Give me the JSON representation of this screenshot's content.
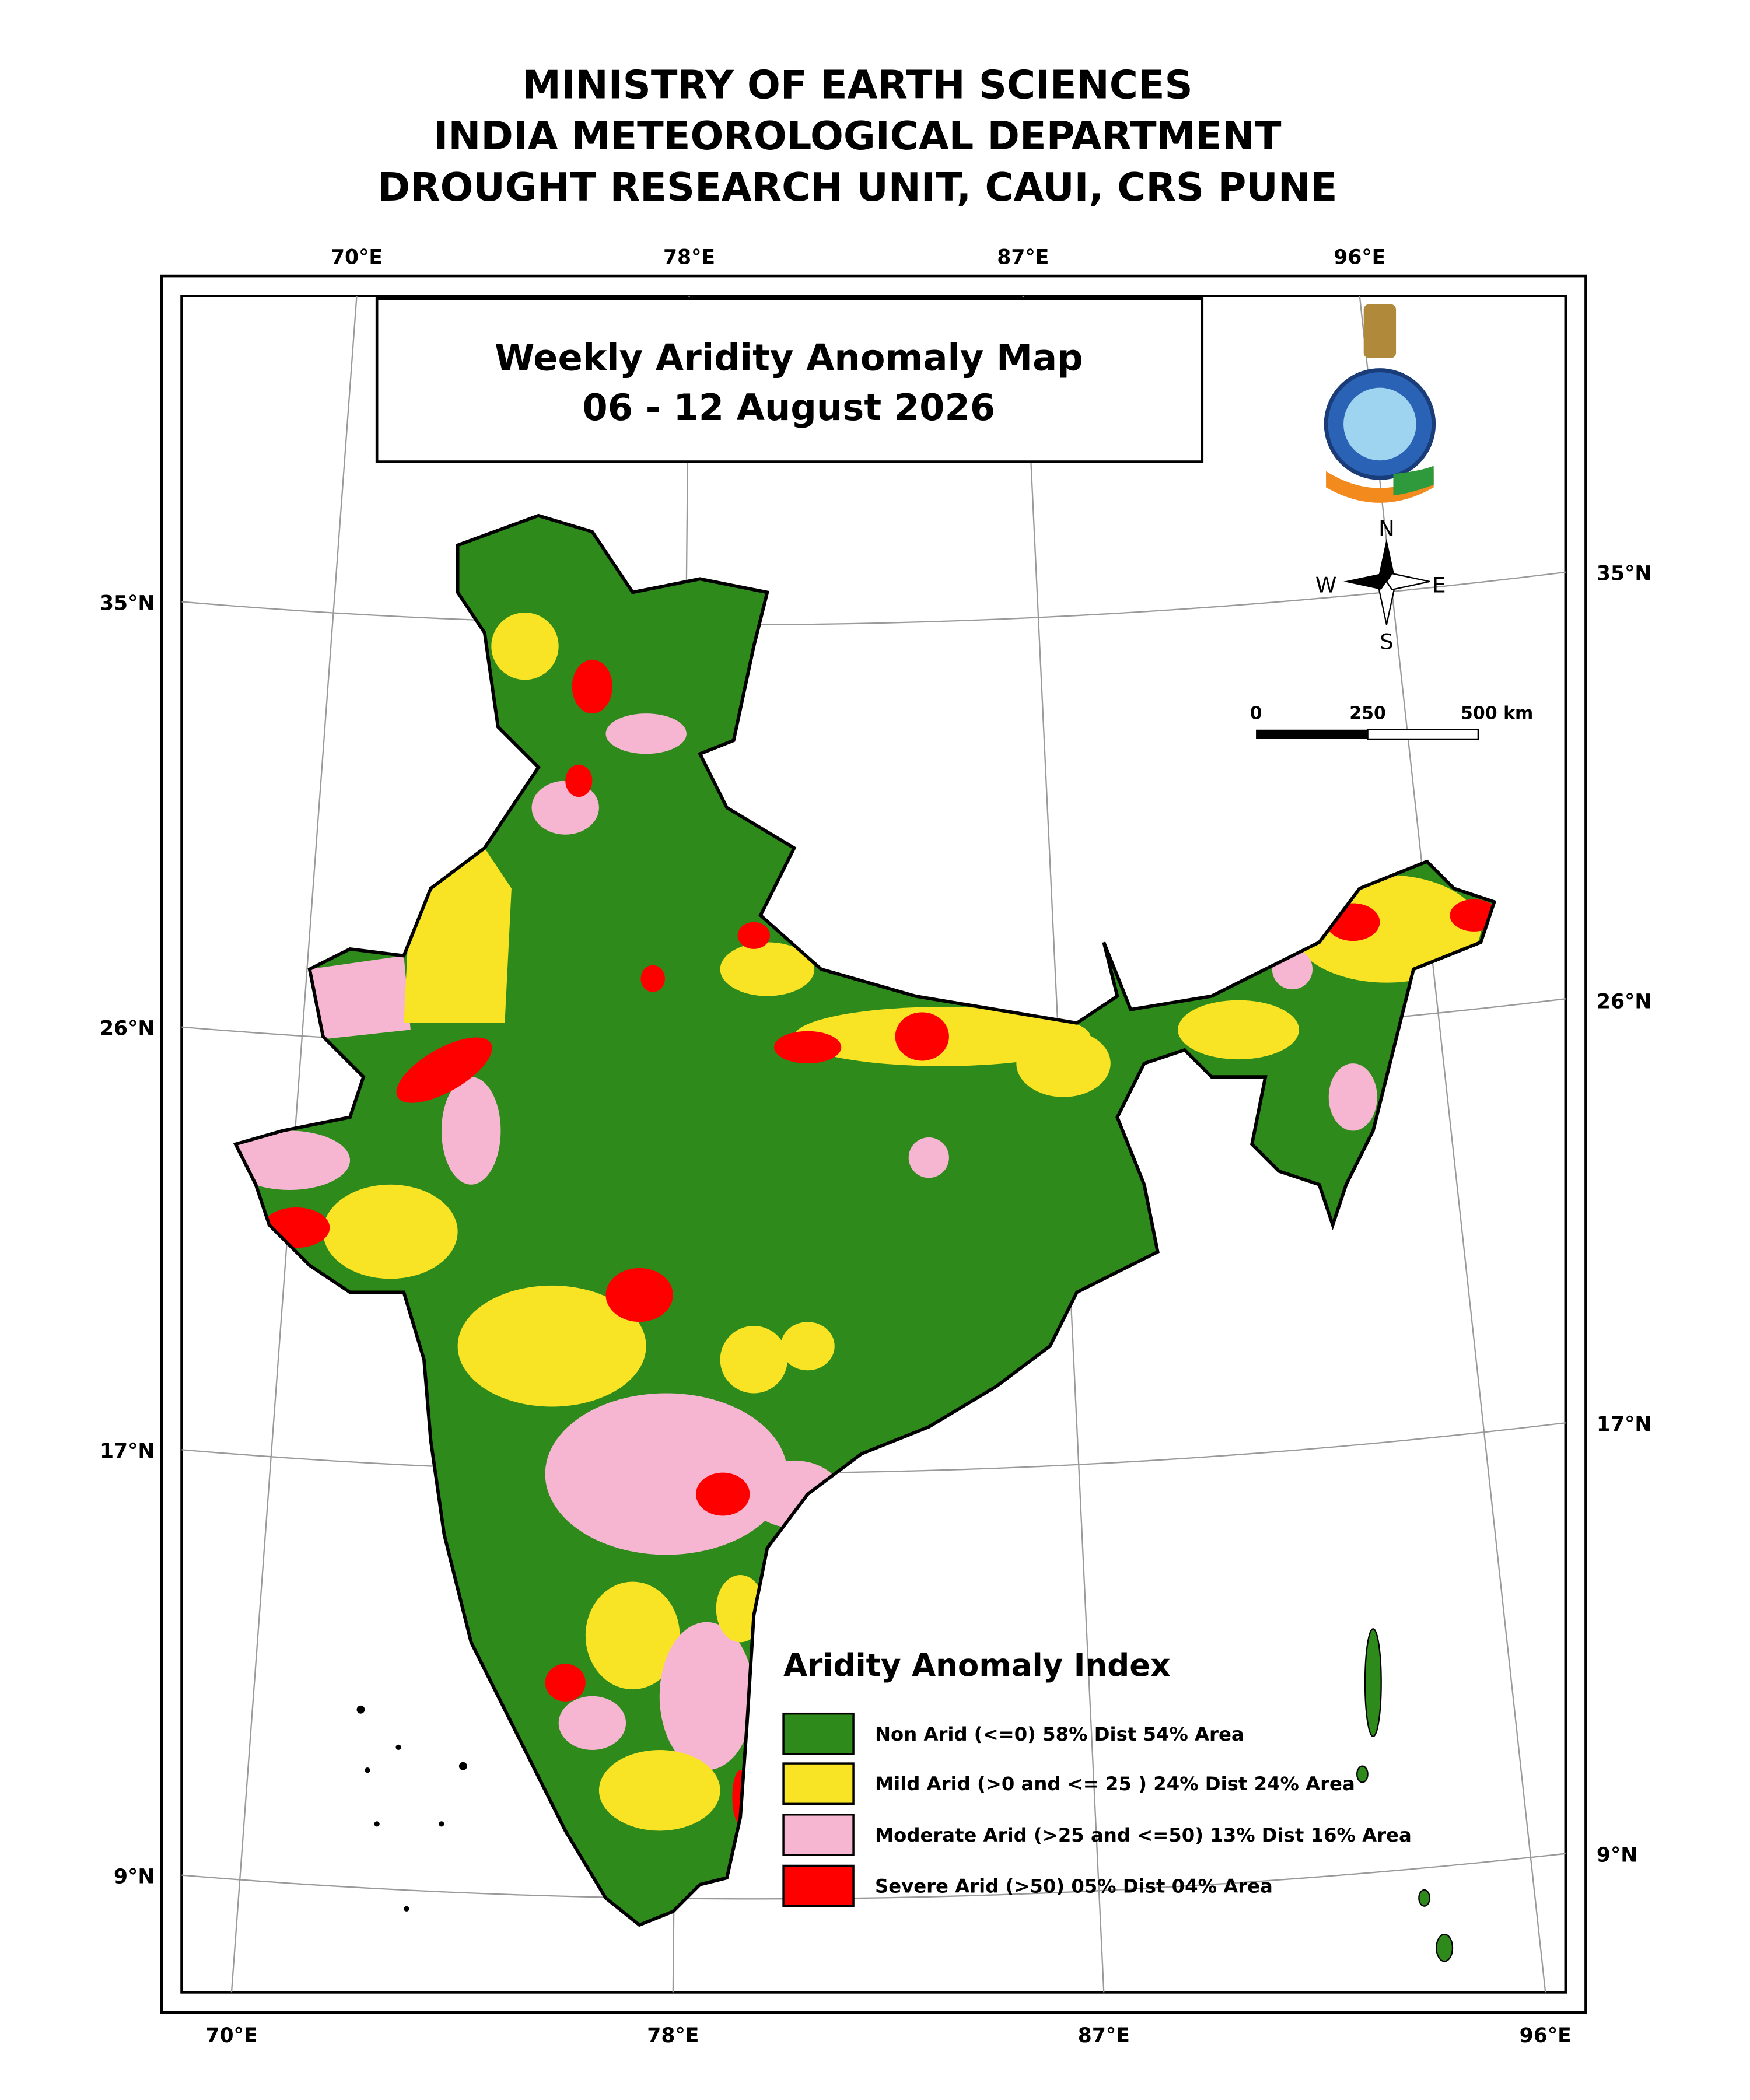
{
  "header": {
    "lines": [
      "MINISTRY OF EARTH SCIENCES",
      "INDIA METEOROLOGICAL DEPARTMENT",
      "DROUGHT RESEARCH UNIT, CAUI, CRS PUNE"
    ]
  },
  "map": {
    "title": "Weekly Aridity Anomaly Map",
    "period": "06 - 12  August 2026",
    "top_labels": [
      "70°E",
      "78°E",
      "87°E",
      "96°E"
    ],
    "bottom_labels": [
      "70°E",
      "78°E",
      "87°E",
      "96°E"
    ],
    "left_labels": [
      "35°N",
      "26°N",
      "17°N",
      "9°N"
    ],
    "right_labels": [
      "35°N",
      "26°N",
      "17°N",
      "9°N"
    ],
    "compass": {
      "north": "N",
      "west": "W",
      "east": "E",
      "south": "S"
    },
    "scale_labels": [
      "0",
      "250",
      "500 km"
    ]
  },
  "legend": {
    "title": "Aridity Anomaly Index",
    "items": [
      {
        "label": "Non Arid (<=0) 58% Dist 54% Area",
        "color": "#2f8a1c"
      },
      {
        "label": "Mild Arid (>0 and <= 25 ) 24% Dist  24% Area",
        "color": "#f8e424"
      },
      {
        "label": "Moderate Arid (>25 and <=50) 13% Dist 16% Area",
        "color": "#f6b6d1"
      },
      {
        "label": "Severe Arid (>50) 05% Dist  04% Area",
        "color": "#ff0000"
      }
    ]
  }
}
